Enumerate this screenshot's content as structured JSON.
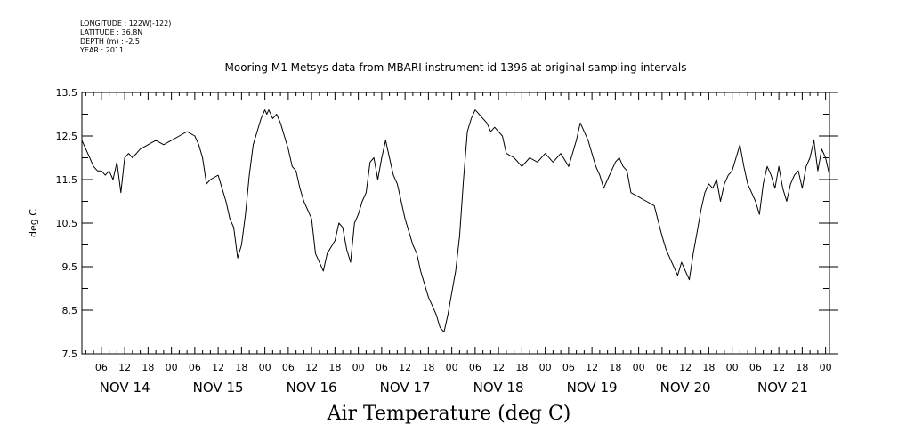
{
  "header": {
    "longitude": "LONGITUDE : 122W(-122)",
    "latitude": "LATITUDE : 36.8N",
    "depth": "DEPTH (m) : -2.5",
    "year": "YEAR : 2011"
  },
  "chart_data": {
    "type": "line",
    "title": "Mooring M1 Metsys data from MBARI instrument id 1396 at original sampling intervals",
    "xlabel": "Air Temperature (deg C)",
    "ylabel": "deg C",
    "ylim": [
      7.5,
      13.5
    ],
    "y_ticks": [
      "13.5",
      "12.5",
      "11.5",
      "10.5",
      "9.5",
      "8.5",
      "7.5"
    ],
    "xlim_hours": [
      1,
      193
    ],
    "x_hour_ticks": [
      "06",
      "12",
      "18",
      "00",
      "06",
      "12",
      "18",
      "00",
      "06",
      "12",
      "18",
      "00",
      "06",
      "12",
      "18",
      "00",
      "06",
      "12",
      "18",
      "00",
      "06",
      "12",
      "18",
      "00",
      "06",
      "12",
      "18",
      "00",
      "06",
      "12",
      "18",
      "00"
    ],
    "x_day_labels": [
      "NOV 14",
      "NOV 15",
      "NOV 16",
      "NOV 17",
      "NOV 18",
      "NOV 19",
      "NOV 20",
      "NOV 21"
    ],
    "grid": false,
    "series": [
      {
        "x_hours": [
          1,
          2,
          3,
          4,
          5,
          6,
          7,
          8,
          9,
          10,
          11,
          12,
          13,
          14,
          15,
          16,
          18,
          20,
          22,
          24,
          26,
          28,
          30,
          31,
          32,
          33,
          34,
          36,
          37,
          38,
          39,
          40,
          41,
          42,
          43,
          44,
          45,
          46,
          47,
          48,
          48.5,
          49,
          50,
          51,
          52,
          53,
          54,
          55,
          56,
          57,
          58,
          60,
          61,
          62,
          63,
          64,
          66,
          67,
          68,
          69,
          70,
          71,
          72,
          73,
          74,
          75,
          76,
          77,
          78,
          79,
          80,
          81,
          82,
          83,
          84,
          85,
          86,
          87,
          88,
          89,
          90,
          91,
          92,
          93,
          94,
          95,
          96,
          97,
          98,
          99,
          100,
          101,
          102,
          103,
          104,
          105,
          106,
          107,
          108,
          109,
          110,
          112,
          114,
          116,
          118,
          120,
          122,
          124,
          126,
          127,
          128,
          129,
          130,
          131,
          132,
          133,
          134,
          135,
          136,
          137,
          138,
          139,
          140,
          141,
          142,
          144,
          146,
          148,
          150,
          151,
          152,
          153,
          154,
          155,
          156,
          157,
          158,
          159,
          160,
          161,
          162,
          163,
          164,
          165,
          166,
          167,
          168,
          169,
          170,
          171,
          172,
          173,
          174,
          175,
          176,
          177,
          178,
          179,
          180,
          181,
          182,
          183,
          184,
          185,
          186,
          187,
          188,
          189,
          190,
          191,
          192,
          193
        ],
        "values": [
          12.4,
          12.2,
          12.0,
          11.8,
          11.7,
          11.7,
          11.6,
          11.7,
          11.5,
          11.9,
          11.2,
          12.0,
          12.1,
          12.0,
          12.1,
          12.2,
          12.3,
          12.4,
          12.3,
          12.4,
          12.5,
          12.6,
          12.5,
          12.3,
          12.0,
          11.4,
          11.5,
          11.6,
          11.3,
          11.0,
          10.6,
          10.4,
          9.7,
          10.0,
          10.7,
          11.6,
          12.3,
          12.6,
          12.9,
          13.1,
          13.0,
          13.1,
          12.9,
          13.0,
          12.8,
          12.5,
          12.2,
          11.8,
          11.7,
          11.3,
          11.0,
          10.6,
          9.8,
          9.6,
          9.4,
          9.8,
          10.1,
          10.5,
          10.4,
          9.9,
          9.6,
          10.5,
          10.7,
          11.0,
          11.2,
          11.9,
          12.0,
          11.5,
          12.0,
          12.4,
          12.0,
          11.6,
          11.4,
          11.0,
          10.6,
          10.3,
          10.0,
          9.8,
          9.4,
          9.1,
          8.8,
          8.6,
          8.4,
          8.1,
          8.0,
          8.4,
          8.9,
          9.4,
          10.2,
          11.5,
          12.6,
          12.9,
          13.1,
          13.0,
          12.9,
          12.8,
          12.6,
          12.7,
          12.6,
          12.5,
          12.1,
          12.0,
          11.8,
          12.0,
          11.9,
          12.1,
          11.9,
          12.1,
          11.8,
          12.1,
          12.4,
          12.8,
          12.6,
          12.4,
          12.1,
          11.8,
          11.6,
          11.3,
          11.5,
          11.7,
          11.9,
          12.0,
          11.8,
          11.7,
          11.2,
          11.1,
          11.0,
          10.9,
          10.2,
          9.9,
          9.7,
          9.5,
          9.3,
          9.6,
          9.4,
          9.2,
          9.8,
          10.3,
          10.8,
          11.2,
          11.4,
          11.3,
          11.5,
          11.0,
          11.4,
          11.6,
          11.7,
          12.0,
          12.3,
          11.8,
          11.4,
          11.2,
          11.0,
          10.7,
          11.4,
          11.8,
          11.6,
          11.3,
          11.8,
          11.3,
          11.0,
          11.4,
          11.6,
          11.7,
          11.3,
          11.8,
          12.0,
          12.4,
          11.7,
          12.2,
          12.0,
          11.6
        ]
      }
    ]
  }
}
